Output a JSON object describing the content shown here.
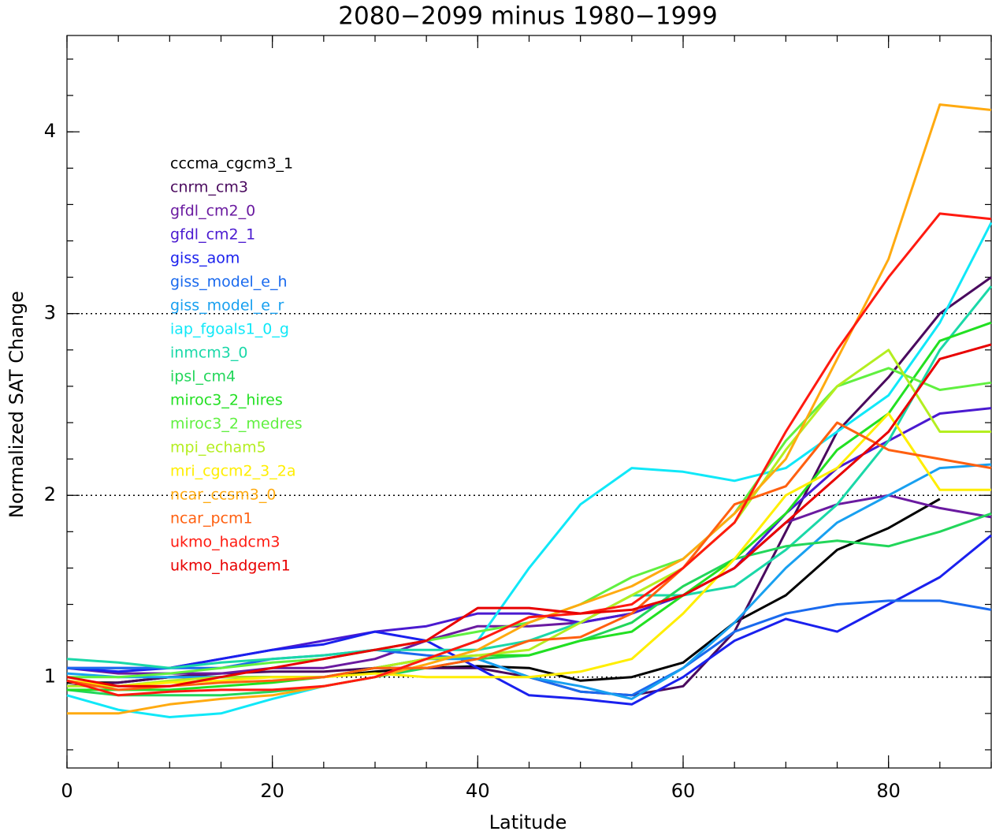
{
  "chart_data": {
    "type": "line",
    "title": "2080−2099 minus 1980−1999",
    "x_label": "Latitude",
    "y_label": "Normalized SAT Change",
    "x": [
      0,
      5,
      10,
      15,
      20,
      25,
      30,
      35,
      40,
      45,
      50,
      55,
      60,
      65,
      70,
      75,
      80,
      85,
      90
    ],
    "xlim": [
      0,
      90
    ],
    "xticks": [
      0,
      20,
      40,
      60,
      80
    ],
    "x_minor_step": 5,
    "ylim": [
      0.5,
      4.53
    ],
    "yticks": [
      1,
      2,
      3,
      4
    ],
    "y_minor_step": 0.2,
    "reference_lines": [
      1,
      2,
      3
    ],
    "series": [
      {
        "name": "cccma_cgcm3_1",
        "color": "#000000",
        "values": [
          0.97,
          0.97,
          1.0,
          1.0,
          1.0,
          1.0,
          1.03,
          1.05,
          1.06,
          1.05,
          0.98,
          1.0,
          1.08,
          1.3,
          1.45,
          1.7,
          1.82,
          1.98,
          null
        ]
      },
      {
        "name": "cnrm_cm3",
        "color": "#4a0a5e",
        "values": [
          0.95,
          0.97,
          1.0,
          1.02,
          1.03,
          1.03,
          1.05,
          1.05,
          1.05,
          1.0,
          0.92,
          0.9,
          0.95,
          1.25,
          1.8,
          2.35,
          2.65,
          3.0,
          3.2
        ]
      },
      {
        "name": "gfdl_cm2_0",
        "color": "#6a1aa0",
        "values": [
          1.05,
          1.02,
          1.02,
          1.02,
          1.05,
          1.05,
          1.1,
          1.2,
          1.28,
          1.28,
          1.3,
          1.35,
          1.45,
          1.6,
          1.85,
          1.95,
          2.0,
          1.93,
          1.88
        ]
      },
      {
        "name": "gfdl_cm2_1",
        "color": "#4a1ad0",
        "values": [
          1.05,
          1.05,
          1.05,
          1.1,
          1.15,
          1.2,
          1.25,
          1.28,
          1.35,
          1.35,
          1.3,
          1.35,
          1.45,
          1.6,
          1.9,
          2.15,
          2.3,
          2.45,
          2.48
        ]
      },
      {
        "name": "giss_aom",
        "color": "#1a20ee",
        "values": [
          1.05,
          1.03,
          1.05,
          1.1,
          1.15,
          1.18,
          1.25,
          1.2,
          1.05,
          0.9,
          0.88,
          0.85,
          1.0,
          1.2,
          1.32,
          1.25,
          1.4,
          1.55,
          1.78
        ]
      },
      {
        "name": "giss_model_e_h",
        "color": "#1a6aee",
        "values": [
          1.05,
          1.05,
          1.05,
          1.05,
          1.1,
          1.12,
          1.15,
          1.12,
          1.1,
          1.0,
          0.92,
          0.9,
          1.05,
          1.25,
          1.35,
          1.4,
          1.42,
          1.42,
          1.37
        ]
      },
      {
        "name": "giss_model_e_r",
        "color": "#18a0f0",
        "values": [
          1.02,
          1.0,
          1.0,
          1.0,
          1.0,
          1.0,
          1.05,
          1.1,
          1.1,
          1.0,
          0.95,
          0.88,
          1.05,
          1.3,
          1.6,
          1.85,
          2.0,
          2.15,
          2.17
        ]
      },
      {
        "name": "iap_fgoals1_0_g",
        "color": "#10e8f8",
        "values": [
          0.9,
          0.82,
          0.78,
          0.8,
          0.88,
          0.95,
          1.0,
          1.1,
          1.2,
          1.6,
          1.95,
          2.15,
          2.13,
          2.08,
          2.15,
          2.35,
          2.55,
          2.95,
          3.5
        ]
      },
      {
        "name": "inmcm3_0",
        "color": "#1ad8a8",
        "values": [
          1.1,
          1.08,
          1.05,
          1.08,
          1.1,
          1.12,
          1.15,
          1.15,
          1.15,
          1.2,
          1.3,
          1.45,
          1.45,
          1.5,
          1.7,
          1.95,
          2.3,
          2.8,
          3.15
        ]
      },
      {
        "name": "ipsl_cm4",
        "color": "#22d65a",
        "values": [
          0.93,
          0.9,
          0.9,
          0.9,
          0.92,
          0.95,
          1.0,
          1.05,
          1.1,
          1.12,
          1.2,
          1.3,
          1.5,
          1.65,
          1.72,
          1.75,
          1.72,
          1.8,
          1.9
        ]
      },
      {
        "name": "miroc3_2_hires",
        "color": "#22e022",
        "values": [
          0.93,
          0.93,
          0.93,
          0.95,
          0.97,
          1.0,
          1.05,
          1.1,
          1.12,
          1.12,
          1.2,
          1.25,
          1.45,
          1.65,
          1.9,
          2.25,
          2.45,
          2.85,
          2.95
        ]
      },
      {
        "name": "miroc3_2_medres",
        "color": "#60f040",
        "values": [
          1.0,
          1.0,
          1.02,
          1.05,
          1.08,
          1.1,
          1.15,
          1.2,
          1.25,
          1.3,
          1.4,
          1.55,
          1.65,
          1.9,
          2.3,
          2.6,
          2.7,
          2.58,
          2.62
        ]
      },
      {
        "name": "mpi_echam5",
        "color": "#b4ee20",
        "values": [
          0.95,
          0.95,
          0.98,
          1.0,
          1.0,
          1.0,
          1.05,
          1.1,
          1.12,
          1.15,
          1.3,
          1.45,
          1.6,
          1.85,
          2.25,
          2.6,
          2.8,
          2.35,
          2.35
        ]
      },
      {
        "name": "mri_cgcm2_3_2a",
        "color": "#ffee00",
        "values": [
          0.98,
          0.95,
          0.97,
          0.98,
          1.0,
          1.0,
          1.02,
          1.0,
          1.0,
          1.0,
          1.03,
          1.1,
          1.35,
          1.65,
          2.0,
          2.15,
          2.45,
          2.03,
          2.03
        ]
      },
      {
        "name": "ncar_ccsm3_0",
        "color": "#ffaa10",
        "values": [
          0.8,
          0.8,
          0.85,
          0.88,
          0.9,
          0.95,
          1.0,
          1.07,
          1.15,
          1.3,
          1.4,
          1.5,
          1.65,
          1.9,
          2.2,
          2.75,
          3.3,
          4.15,
          4.12
        ]
      },
      {
        "name": "ncar_pcm1",
        "color": "#ff6010",
        "values": [
          0.98,
          0.93,
          0.95,
          0.97,
          0.98,
          1.0,
          1.05,
          1.05,
          1.1,
          1.2,
          1.22,
          1.35,
          1.6,
          1.95,
          2.05,
          2.4,
          2.25,
          2.2,
          2.15
        ]
      },
      {
        "name": "ukmo_hadcm3",
        "color": "#ff1a10",
        "values": [
          0.98,
          0.9,
          0.92,
          0.93,
          0.93,
          0.95,
          1.0,
          1.1,
          1.2,
          1.33,
          1.35,
          1.4,
          1.6,
          1.85,
          2.35,
          2.8,
          3.2,
          3.55,
          3.52
        ]
      },
      {
        "name": "ukmo_hadgem1",
        "color": "#e80000",
        "values": [
          1.0,
          0.95,
          0.95,
          1.0,
          1.05,
          1.1,
          1.15,
          1.2,
          1.38,
          1.38,
          1.35,
          1.37,
          1.45,
          1.6,
          1.85,
          2.1,
          2.35,
          2.75,
          2.83
        ]
      }
    ]
  }
}
